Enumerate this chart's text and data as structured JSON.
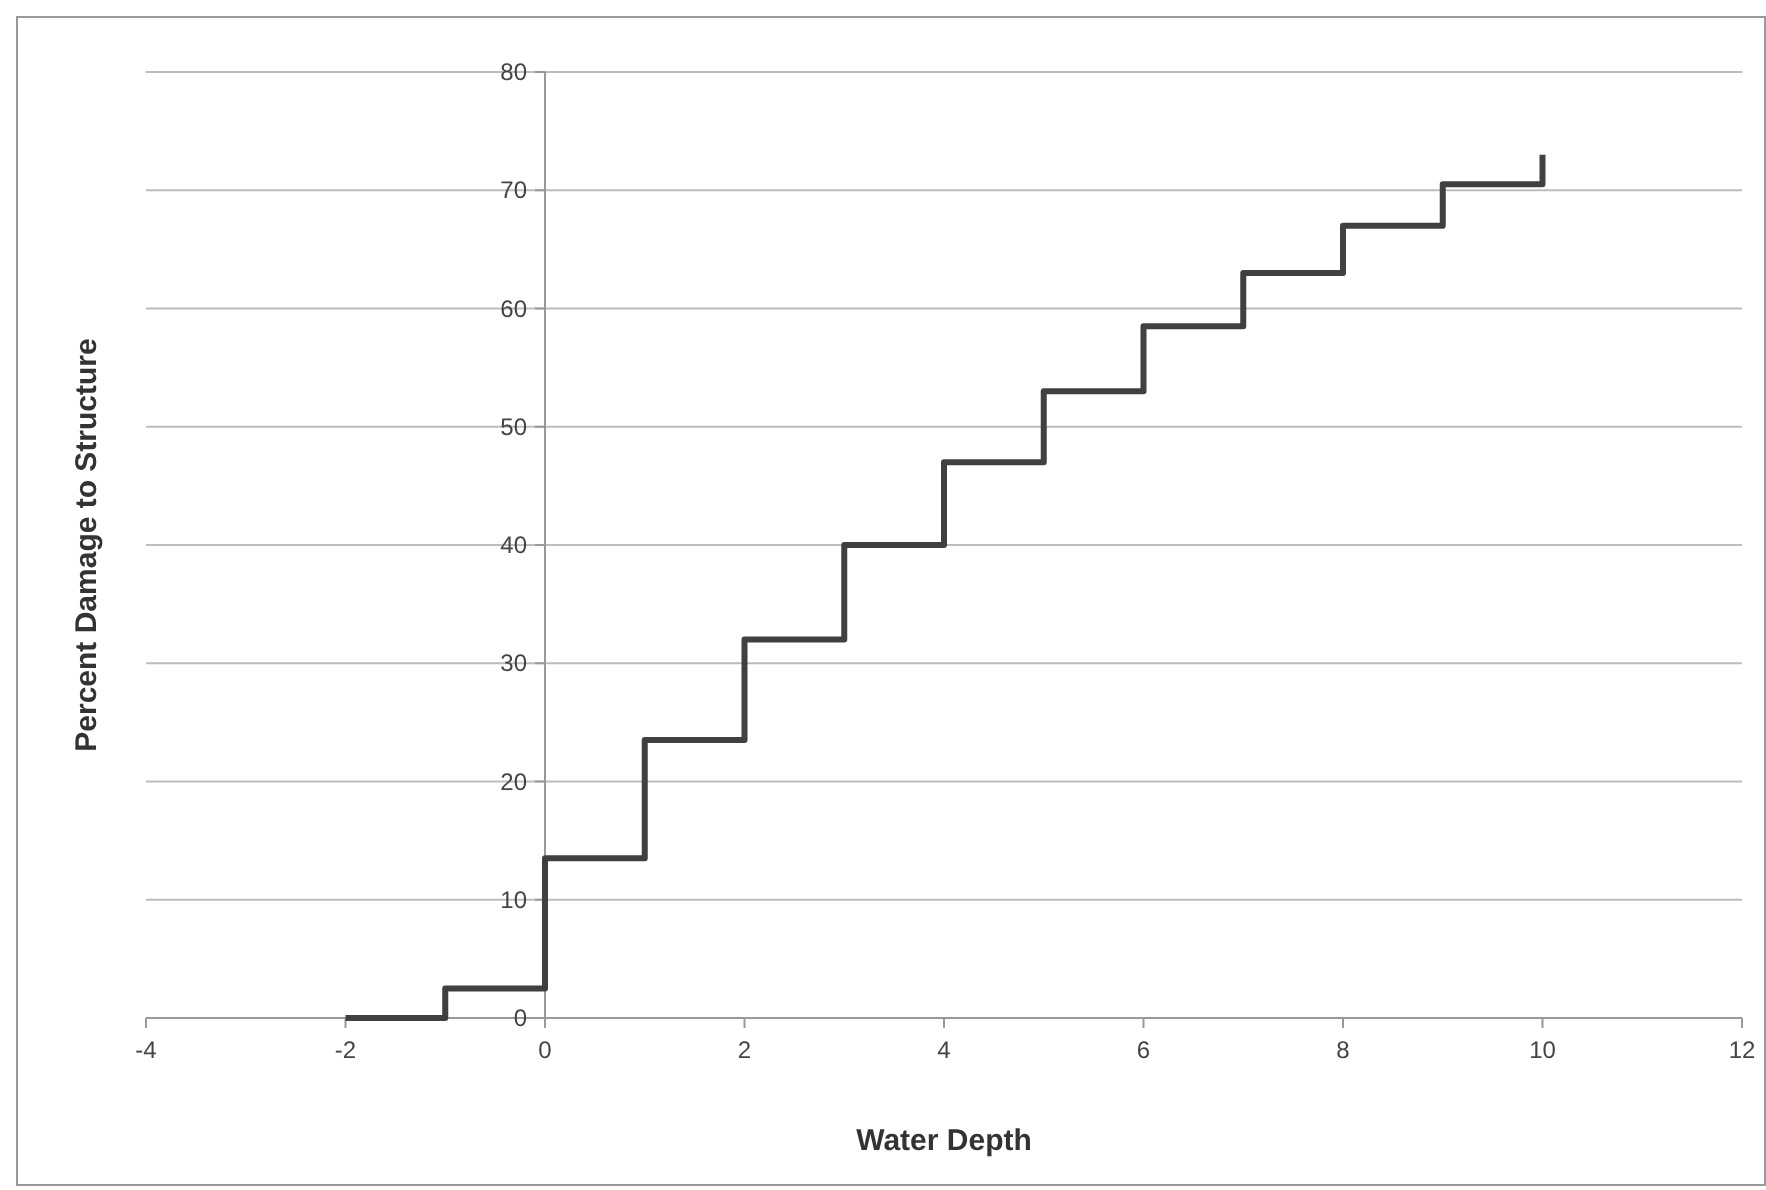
{
  "chart_data": {
    "type": "step",
    "xlabel": "Water Depth",
    "ylabel": "Percent Damage to Structure",
    "x": [
      -2,
      -1,
      0,
      1,
      2,
      3,
      4,
      5,
      6,
      7,
      8,
      9,
      10
    ],
    "series": [
      {
        "color": "#404040",
        "values": [
          0,
          2.5,
          13.5,
          23.5,
          32,
          40,
          47,
          53,
          58.5,
          63,
          67,
          70.5,
          73
        ]
      }
    ],
    "xlim": [
      -4,
      12
    ],
    "xticks": [
      -4,
      -2,
      0,
      2,
      4,
      6,
      8,
      10,
      12
    ],
    "ylim": [
      0,
      80
    ],
    "yticks": [
      0,
      10,
      20,
      30,
      40,
      50,
      60,
      70,
      80
    ],
    "grid": "y",
    "marker": "none",
    "line_style": "solid"
  }
}
